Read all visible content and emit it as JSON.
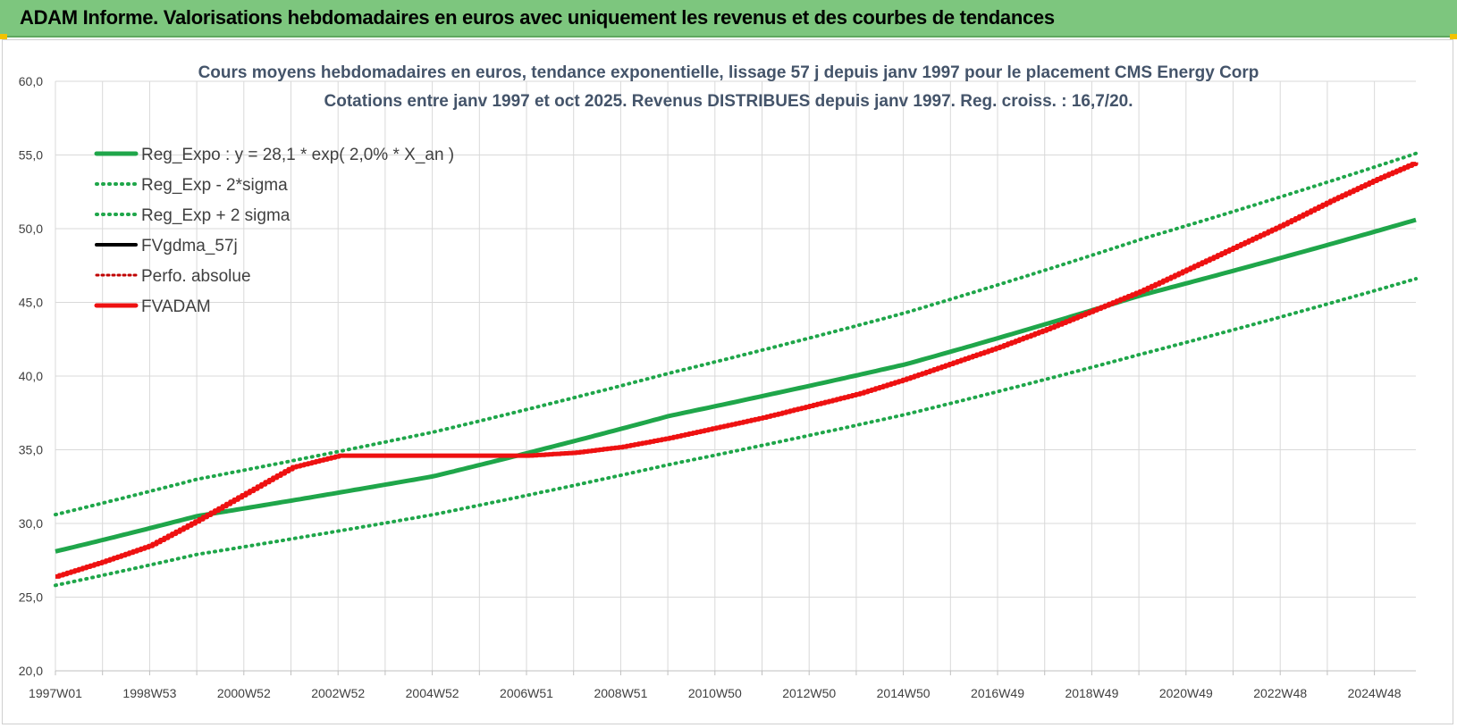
{
  "header": {
    "title": "ADAM Informe. Valorisations hebdomadaires en euros avec uniquement les revenus et des courbes de tendances"
  },
  "colors": {
    "banner": "#7dc67e",
    "regression": "#1fa64a",
    "fvadam": "#ee1111",
    "fvgdma": "#000000",
    "perfo": "#c00000",
    "grid": "#d9d9d9"
  },
  "chart_data": {
    "type": "line",
    "title_line1": "Cours moyens hebdomadaires en euros, tendance exponentielle, lissage 57 j depuis janv 1997 pour le placement CMS Energy Corp",
    "title_line2": "Cotations entre janv 1997 et oct 2025. Revenus DISTRIBUES depuis janv 1997.  Reg. croiss. : 16,7/20.",
    "ylim": [
      20,
      60
    ],
    "y_ticks": [
      "20,0",
      "25,0",
      "30,0",
      "35,0",
      "40,0",
      "45,0",
      "50,0",
      "55,0",
      "60,0"
    ],
    "x_ticks": [
      "1997W01",
      "1998W53",
      "2000W52",
      "2002W52",
      "2004W52",
      "2006W51",
      "2008W51",
      "2010W50",
      "2012W50",
      "2014W50",
      "2016W49",
      "2018W49",
      "2020W49",
      "2022W48",
      "2024W48"
    ],
    "x_range_years": [
      1997.0,
      2025.8
    ],
    "legend_position": "top-left",
    "legend": [
      {
        "label": "Reg_Expo : y = 28,1 * exp( 2,0% *  X_an )",
        "style": "solid-green"
      },
      {
        "label": "Reg_Exp - 2*sigma",
        "style": "dotted-green"
      },
      {
        "label": "Reg_Exp + 2 sigma",
        "style": "dotted-green"
      },
      {
        "label": "FVgdma_57j",
        "style": "solid-black"
      },
      {
        "label": "Perfo. absolue",
        "style": "dotted-red"
      },
      {
        "label": "FVADAM",
        "style": "solid-red"
      }
    ],
    "series": [
      {
        "name": "Reg_Expo : y = 28,1 * exp( 2,0% *  X_an )",
        "x": [
          1997.0,
          2000.0,
          2005.0,
          2010.0,
          2015.0,
          2020.0,
          2025.8
        ],
        "values": [
          28.1,
          30.5,
          33.2,
          37.3,
          40.8,
          45.5,
          50.6
        ]
      },
      {
        "name": "Reg_Exp - 2*sigma",
        "x": [
          1997.0,
          2000.0,
          2005.0,
          2010.0,
          2015.0,
          2020.0,
          2025.8
        ],
        "values": [
          25.8,
          27.9,
          30.6,
          34.0,
          37.4,
          41.5,
          46.6
        ]
      },
      {
        "name": "Reg_Exp + 2 sigma",
        "x": [
          1997.0,
          2000.0,
          2005.0,
          2010.0,
          2015.0,
          2020.0,
          2025.8
        ],
        "values": [
          30.6,
          33.0,
          36.2,
          40.2,
          44.3,
          49.3,
          55.1
        ]
      },
      {
        "name": "FVADAM",
        "x": [
          1997.0,
          1998.0,
          1999.0,
          2000.0,
          2001.0,
          2002.0,
          2003.0,
          2005.0,
          2007.0,
          2008.0,
          2009.0,
          2010.0,
          2011.0,
          2012.0,
          2013.0,
          2014.0,
          2015.0,
          2016.0,
          2017.0,
          2018.0,
          2019.0,
          2020.0,
          2021.0,
          2022.0,
          2023.0,
          2024.0,
          2025.0,
          2025.8
        ],
        "values": [
          26.4,
          27.4,
          28.5,
          30.2,
          32.0,
          33.8,
          34.6,
          34.6,
          34.6,
          34.8,
          35.2,
          35.8,
          36.5,
          37.2,
          38.0,
          38.8,
          39.8,
          40.9,
          42.0,
          43.2,
          44.5,
          45.8,
          47.3,
          48.8,
          50.3,
          51.9,
          53.4,
          54.5
        ]
      }
    ]
  }
}
